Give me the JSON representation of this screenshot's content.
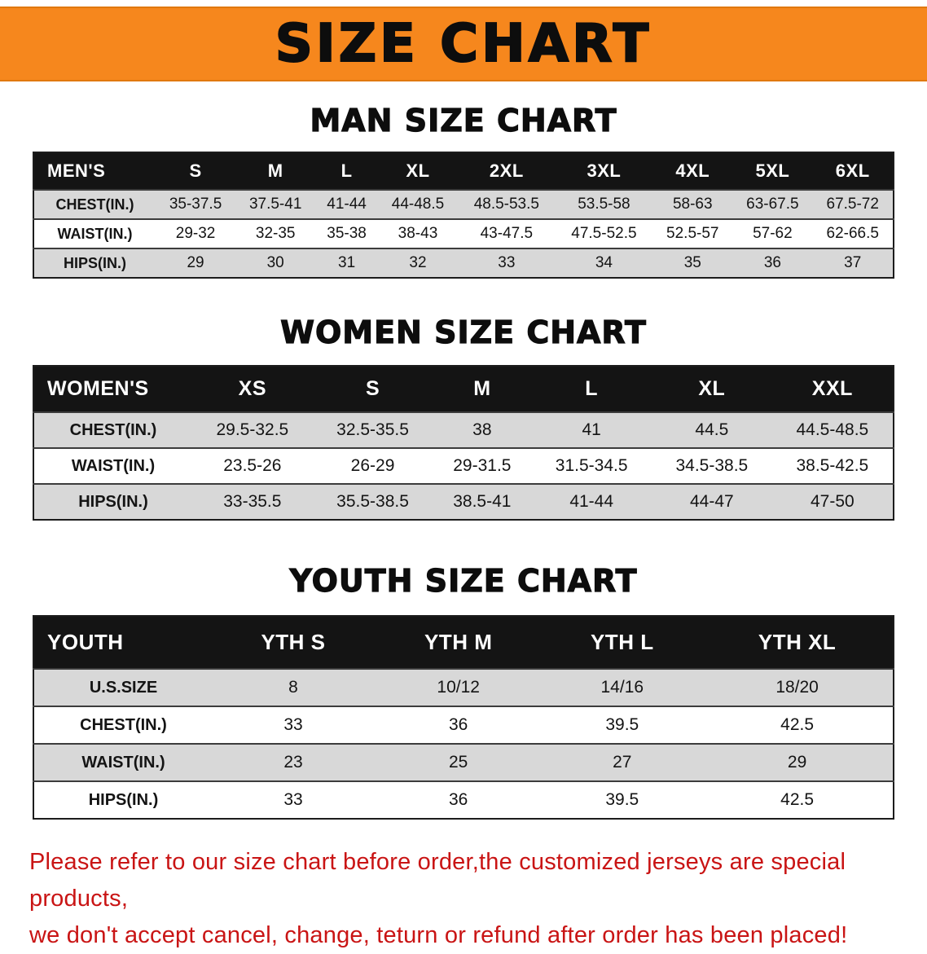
{
  "banner": {
    "title": "SIZE CHART",
    "bg_color": "#F6871D",
    "text_color": "#0D0D0D"
  },
  "sections": [
    {
      "heading": "MAN SIZE CHART",
      "table": {
        "header": [
          "MEN'S",
          "S",
          "M",
          "L",
          "XL",
          "2XL",
          "3XL",
          "4XL",
          "5XL",
          "6XL"
        ],
        "rows": [
          [
            "CHEST(IN.)",
            "35-37.5",
            "37.5-41",
            "41-44",
            "44-48.5",
            "48.5-53.5",
            "53.5-58",
            "58-63",
            "63-67.5",
            "67.5-72"
          ],
          [
            "WAIST(IN.)",
            "29-32",
            "32-35",
            "35-38",
            "38-43",
            "43-47.5",
            "47.5-52.5",
            "52.5-57",
            "57-62",
            "62-66.5"
          ],
          [
            "HIPS(IN.)",
            "29",
            "30",
            "31",
            "32",
            "33",
            "34",
            "35",
            "36",
            "37"
          ]
        ]
      }
    },
    {
      "heading": "WOMEN SIZE CHART",
      "table": {
        "header": [
          "WOMEN'S",
          "XS",
          "S",
          "M",
          "L",
          "XL",
          "XXL"
        ],
        "rows": [
          [
            "CHEST(IN.)",
            "29.5-32.5",
            "32.5-35.5",
            "38",
            "41",
            "44.5",
            "44.5-48.5"
          ],
          [
            "WAIST(IN.)",
            "23.5-26",
            "26-29",
            "29-31.5",
            "31.5-34.5",
            "34.5-38.5",
            "38.5-42.5"
          ],
          [
            "HIPS(IN.)",
            "33-35.5",
            "35.5-38.5",
            "38.5-41",
            "41-44",
            "44-47",
            "47-50"
          ]
        ]
      }
    },
    {
      "heading": "YOUTH SIZE CHART",
      "table": {
        "header": [
          "YOUTH",
          "YTH S",
          "YTH M",
          "YTH L",
          "YTH XL"
        ],
        "rows": [
          [
            "U.S.SIZE",
            "8",
            "10/12",
            "14/16",
            "18/20"
          ],
          [
            "CHEST(IN.)",
            "33",
            "36",
            "39.5",
            "42.5"
          ],
          [
            "WAIST(IN.)",
            "23",
            "25",
            "27",
            "29"
          ],
          [
            "HIPS(IN.)",
            "33",
            "36",
            "39.5",
            "42.5"
          ]
        ]
      }
    }
  ],
  "disclaimer": {
    "color": "#C91414",
    "lines": [
      "Please refer to our size chart before order,the customized jerseys are special products,",
      "we don't accept cancel, change, teturn or refund after order has been placed!"
    ]
  },
  "colors": {
    "table_header_bg": "#141414",
    "table_header_text": "#FFFFFF",
    "row_alt_bg": "#D8D8D8",
    "row_bg": "#FFFFFF"
  }
}
